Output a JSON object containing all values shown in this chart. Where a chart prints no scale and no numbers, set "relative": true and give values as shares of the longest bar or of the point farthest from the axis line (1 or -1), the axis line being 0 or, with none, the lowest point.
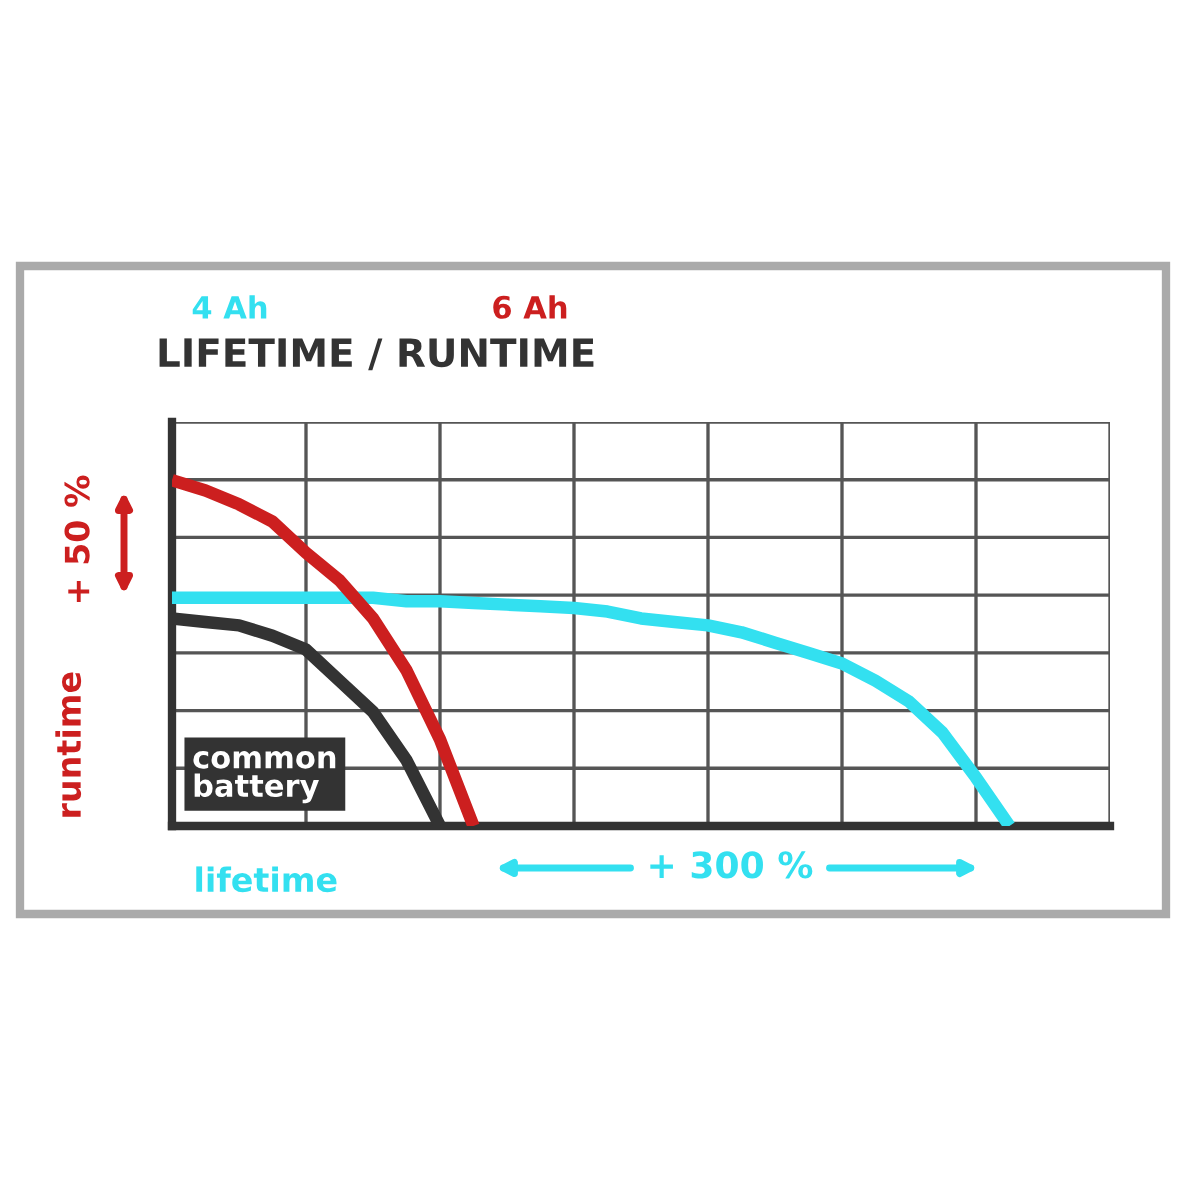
{
  "chart_data": {
    "type": "line",
    "title": "LIFETIME / RUNTIME",
    "xlabel": "lifetime",
    "ylabel": "runtime",
    "relative": true,
    "grid": true,
    "marker": "none",
    "line_style": "solid",
    "categories": [
      null,
      null,
      null,
      null,
      null,
      null,
      null,
      null,
      null,
      null,
      null,
      null,
      null,
      null,
      null,
      null,
      null,
      null,
      null,
      null,
      null,
      null,
      null,
      null,
      null,
      null
    ],
    "series": [
      {
        "name": "4 Ah",
        "color": "#33e0f0",
        "values": [
          0.66,
          0.66,
          0.66,
          0.66,
          0.66,
          0.66,
          0.66,
          0.65,
          0.65,
          0.645,
          0.64,
          0.635,
          0.63,
          0.62,
          0.6,
          0.59,
          0.58,
          0.56,
          0.53,
          0.5,
          0.47,
          0.42,
          0.36,
          0.27,
          0.14,
          0
        ]
      },
      {
        "name": "6 Ah",
        "color": "#cc1f1f",
        "values": [
          1.0,
          0.97,
          0.93,
          0.88,
          0.79,
          0.71,
          0.6,
          0.45,
          0.25,
          0,
          null,
          null,
          null,
          null,
          null,
          null,
          null,
          null,
          null,
          null,
          null,
          null,
          null,
          null,
          null,
          null
        ]
      },
      {
        "name": "common battery",
        "color": "#333333",
        "values": [
          0.6,
          0.59,
          0.58,
          0.55,
          0.51,
          0.42,
          0.33,
          0.19,
          0,
          null,
          null,
          null,
          null,
          null,
          null,
          null,
          null,
          null,
          null,
          null,
          null,
          null,
          null,
          null,
          null,
          null
        ]
      }
    ],
    "annotations": [
      "+ 50 %",
      "+ 300 %"
    ]
  }
}
